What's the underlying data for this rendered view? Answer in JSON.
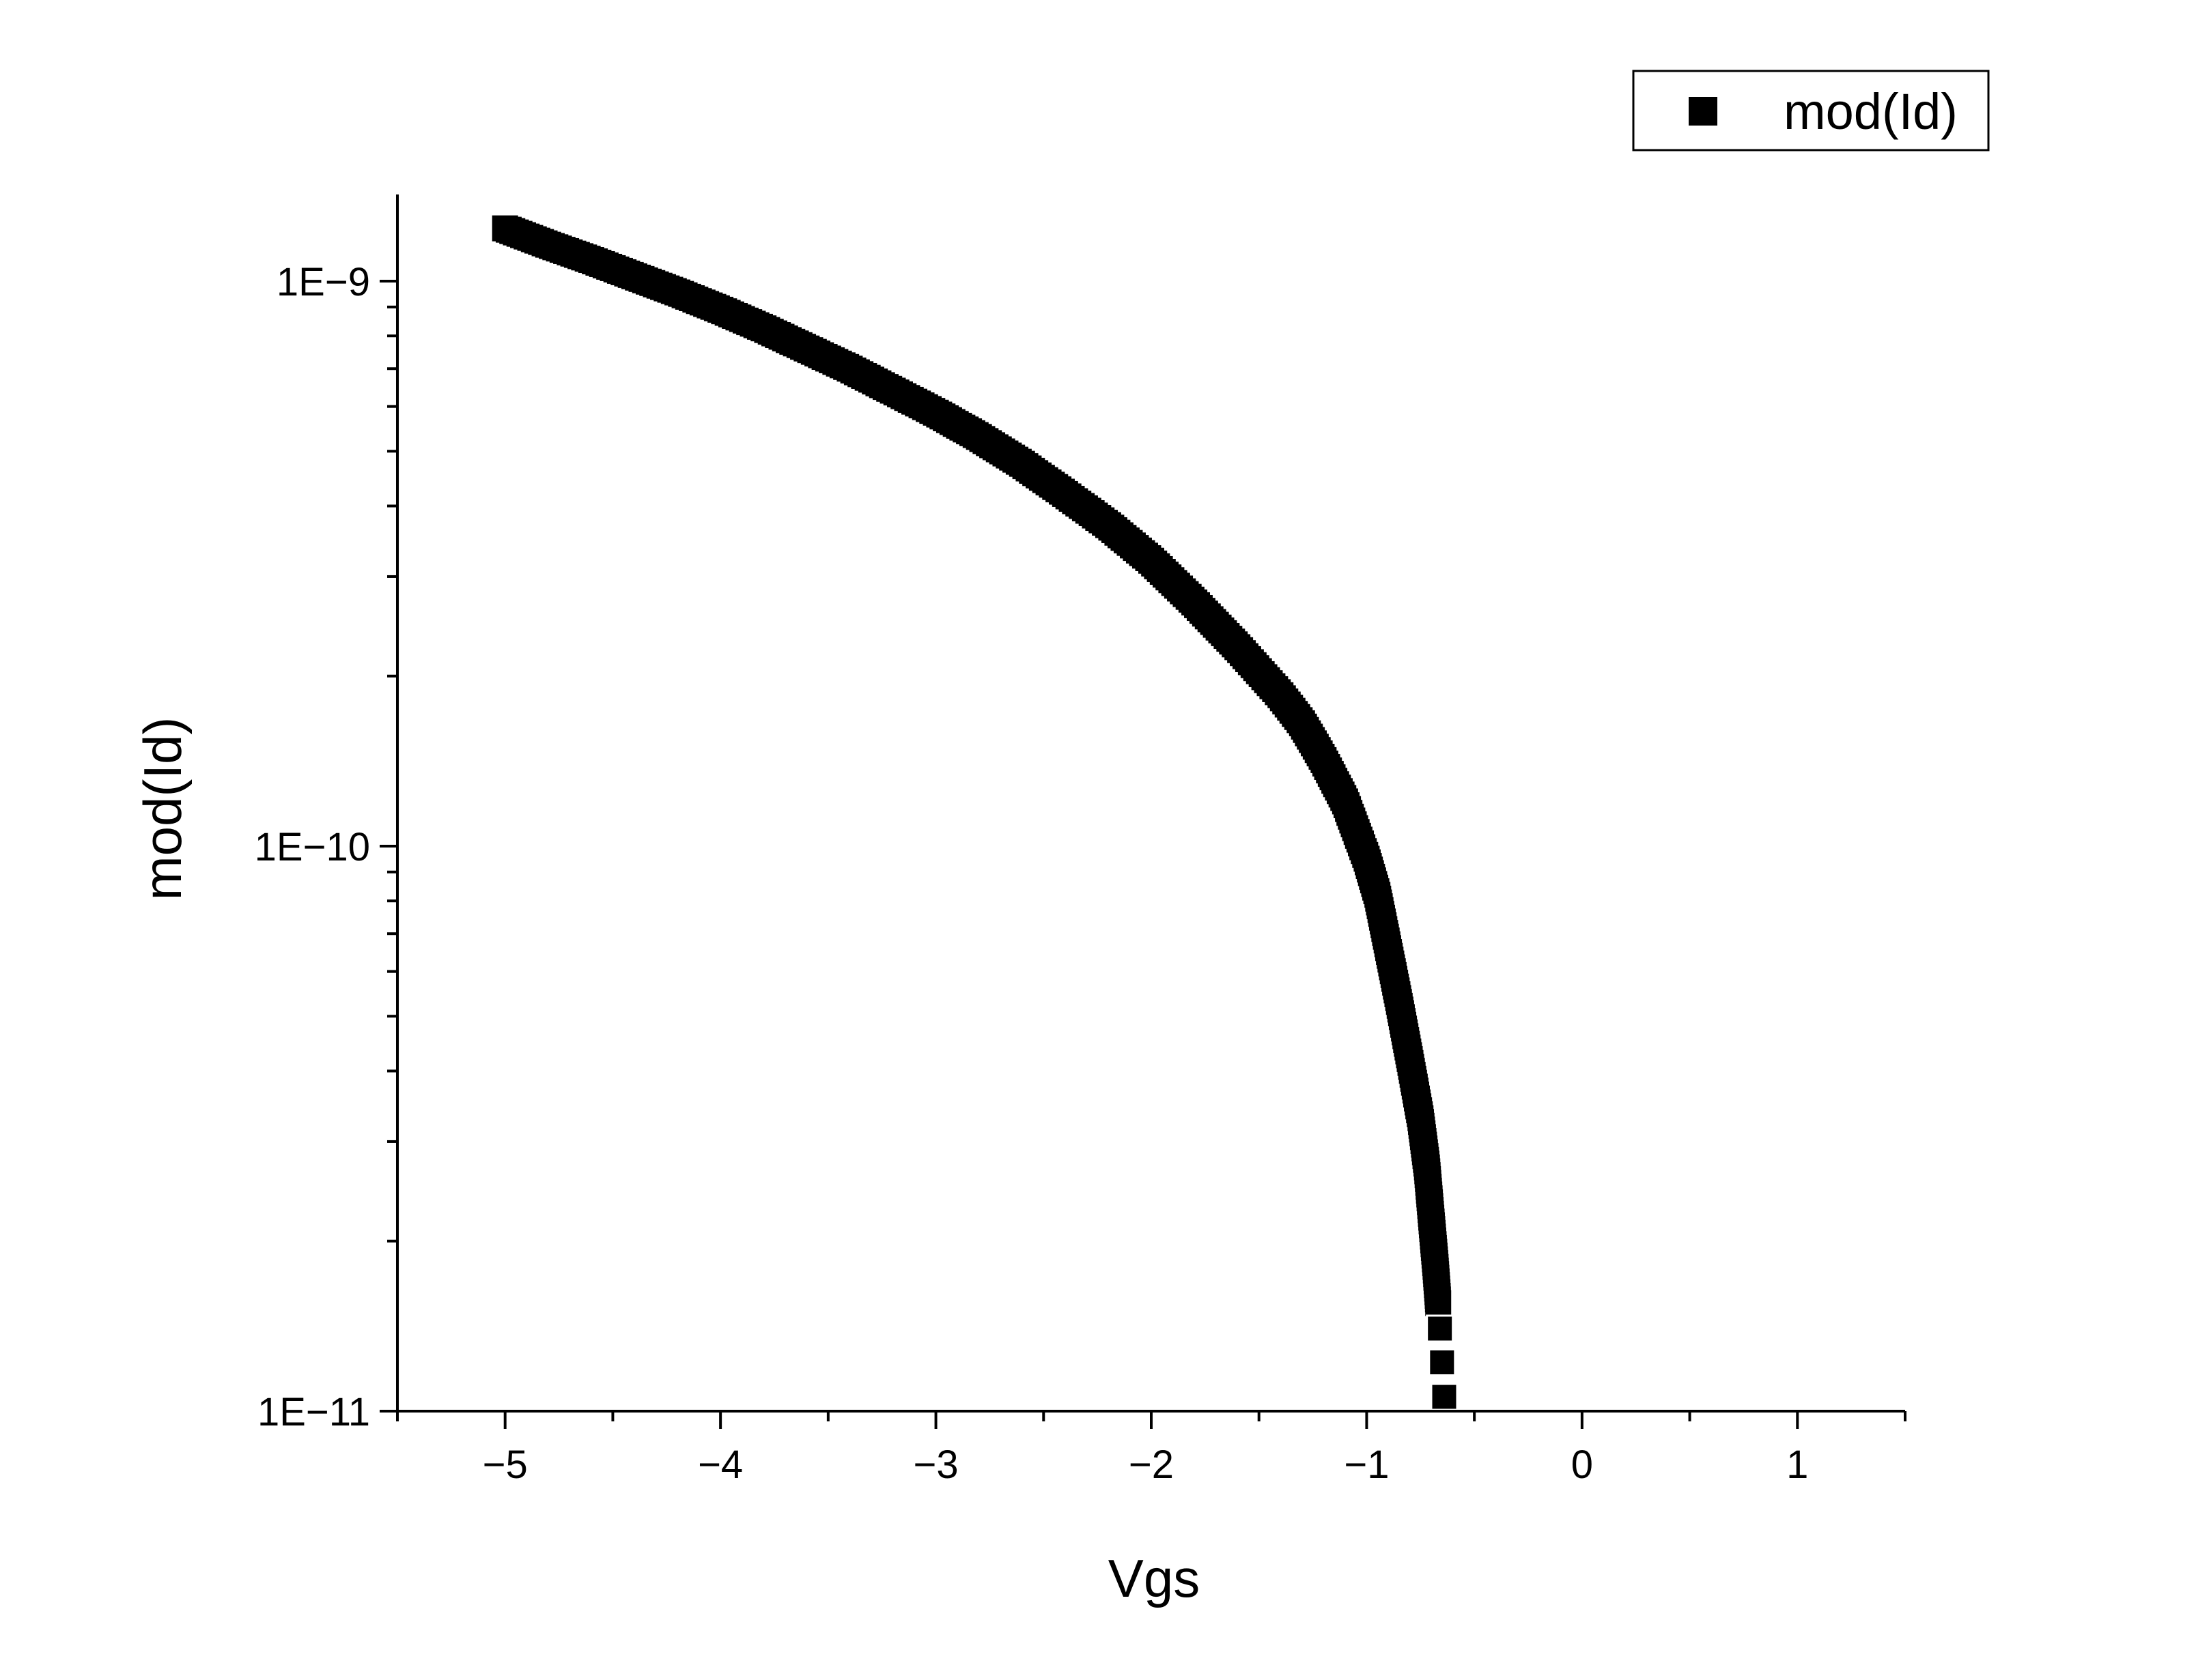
{
  "chart_data": {
    "type": "scatter",
    "xlabel": "Vgs",
    "ylabel": "mod(Id)",
    "xlim": [
      -5.5,
      1.5
    ],
    "ylim": [
      1e-11,
      1.45e-09
    ],
    "yscale": "log",
    "x_major_ticks": [
      -5,
      -4,
      -3,
      -2,
      -1,
      0,
      1
    ],
    "x_tick_labels": [
      "−5",
      "−4",
      "−3",
      "−2",
      "−1",
      "0",
      "1"
    ],
    "x_minor_ticks": [
      -5.5,
      -4.5,
      -3.5,
      -2.5,
      -1.5,
      -0.5,
      0.5,
      1.5
    ],
    "y_major_ticks": [
      1e-11,
      1e-10,
      1e-09
    ],
    "y_tick_labels": [
      "1E−11",
      "1E−10",
      "1E−9"
    ],
    "grid": false,
    "legend": "top-right",
    "marker": "square",
    "marker_color": "#000000",
    "series": [
      {
        "name": "mod(Id)",
        "points": [
          [
            -5.0,
            1.24e-09
          ],
          [
            -4.8,
            1.16e-09
          ],
          [
            -4.6,
            1.09e-09
          ],
          [
            -4.4,
            1.02e-09
          ],
          [
            -4.2,
            9.55e-10
          ],
          [
            -4.0,
            8.9e-10
          ],
          [
            -3.8,
            8.25e-10
          ],
          [
            -3.6,
            7.6e-10
          ],
          [
            -3.4,
            7e-10
          ],
          [
            -3.2,
            6.4e-10
          ],
          [
            -3.0,
            5.85e-10
          ],
          [
            -2.8,
            5.3e-10
          ],
          [
            -2.6,
            4.75e-10
          ],
          [
            -2.4,
            4.2e-10
          ],
          [
            -2.2,
            3.7e-10
          ],
          [
            -2.0,
            3.2e-10
          ],
          [
            -1.8,
            2.7e-10
          ],
          [
            -1.6,
            2.25e-10
          ],
          [
            -1.4,
            1.85e-10
          ],
          [
            -1.3,
            1.65e-10
          ],
          [
            -1.2,
            1.42e-10
          ],
          [
            -1.1,
            1.2e-10
          ],
          [
            -1.0,
            9.5e-11
          ],
          [
            -0.95,
            8.2e-11
          ],
          [
            -0.9,
            6.6e-11
          ],
          [
            -0.85,
            5.3e-11
          ],
          [
            -0.8,
            4.2e-11
          ],
          [
            -0.75,
            3.3e-11
          ],
          [
            -0.72,
            2.7e-11
          ],
          [
            -0.7,
            2.2e-11
          ],
          [
            -0.68,
            1.8e-11
          ],
          [
            -0.67,
            1.6e-11
          ],
          [
            -0.66,
            1.4e-11
          ],
          [
            -0.65,
            1.22e-11
          ],
          [
            -0.64,
            1.06e-11
          ]
        ]
      }
    ]
  }
}
